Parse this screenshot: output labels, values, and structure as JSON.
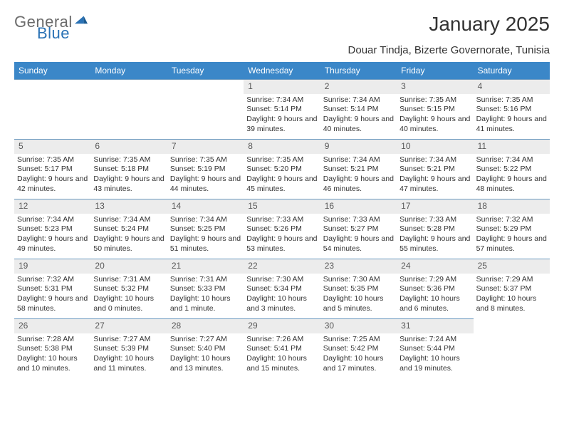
{
  "brand": {
    "part1": "General",
    "part2": "Blue"
  },
  "title": "January 2025",
  "location": "Douar Tindja, Bizerte Governorate, Tunisia",
  "weekdays": [
    "Sunday",
    "Monday",
    "Tuesday",
    "Wednesday",
    "Thursday",
    "Friday",
    "Saturday"
  ],
  "colors": {
    "header_bg": "#3b87c8",
    "header_text": "#ffffff",
    "daynum_bg": "#ececec",
    "daynum_text": "#595959",
    "body_text": "#333333",
    "rule": "#6b99c0",
    "logo_gray": "#6b6b6b",
    "logo_blue": "#2a72b5"
  },
  "leading_blanks": 3,
  "days": [
    {
      "n": "1",
      "sunrise": "Sunrise: 7:34 AM",
      "sunset": "Sunset: 5:14 PM",
      "daylight": "Daylight: 9 hours and 39 minutes."
    },
    {
      "n": "2",
      "sunrise": "Sunrise: 7:34 AM",
      "sunset": "Sunset: 5:14 PM",
      "daylight": "Daylight: 9 hours and 40 minutes."
    },
    {
      "n": "3",
      "sunrise": "Sunrise: 7:35 AM",
      "sunset": "Sunset: 5:15 PM",
      "daylight": "Daylight: 9 hours and 40 minutes."
    },
    {
      "n": "4",
      "sunrise": "Sunrise: 7:35 AM",
      "sunset": "Sunset: 5:16 PM",
      "daylight": "Daylight: 9 hours and 41 minutes."
    },
    {
      "n": "5",
      "sunrise": "Sunrise: 7:35 AM",
      "sunset": "Sunset: 5:17 PM",
      "daylight": "Daylight: 9 hours and 42 minutes."
    },
    {
      "n": "6",
      "sunrise": "Sunrise: 7:35 AM",
      "sunset": "Sunset: 5:18 PM",
      "daylight": "Daylight: 9 hours and 43 minutes."
    },
    {
      "n": "7",
      "sunrise": "Sunrise: 7:35 AM",
      "sunset": "Sunset: 5:19 PM",
      "daylight": "Daylight: 9 hours and 44 minutes."
    },
    {
      "n": "8",
      "sunrise": "Sunrise: 7:35 AM",
      "sunset": "Sunset: 5:20 PM",
      "daylight": "Daylight: 9 hours and 45 minutes."
    },
    {
      "n": "9",
      "sunrise": "Sunrise: 7:34 AM",
      "sunset": "Sunset: 5:21 PM",
      "daylight": "Daylight: 9 hours and 46 minutes."
    },
    {
      "n": "10",
      "sunrise": "Sunrise: 7:34 AM",
      "sunset": "Sunset: 5:21 PM",
      "daylight": "Daylight: 9 hours and 47 minutes."
    },
    {
      "n": "11",
      "sunrise": "Sunrise: 7:34 AM",
      "sunset": "Sunset: 5:22 PM",
      "daylight": "Daylight: 9 hours and 48 minutes."
    },
    {
      "n": "12",
      "sunrise": "Sunrise: 7:34 AM",
      "sunset": "Sunset: 5:23 PM",
      "daylight": "Daylight: 9 hours and 49 minutes."
    },
    {
      "n": "13",
      "sunrise": "Sunrise: 7:34 AM",
      "sunset": "Sunset: 5:24 PM",
      "daylight": "Daylight: 9 hours and 50 minutes."
    },
    {
      "n": "14",
      "sunrise": "Sunrise: 7:34 AM",
      "sunset": "Sunset: 5:25 PM",
      "daylight": "Daylight: 9 hours and 51 minutes."
    },
    {
      "n": "15",
      "sunrise": "Sunrise: 7:33 AM",
      "sunset": "Sunset: 5:26 PM",
      "daylight": "Daylight: 9 hours and 53 minutes."
    },
    {
      "n": "16",
      "sunrise": "Sunrise: 7:33 AM",
      "sunset": "Sunset: 5:27 PM",
      "daylight": "Daylight: 9 hours and 54 minutes."
    },
    {
      "n": "17",
      "sunrise": "Sunrise: 7:33 AM",
      "sunset": "Sunset: 5:28 PM",
      "daylight": "Daylight: 9 hours and 55 minutes."
    },
    {
      "n": "18",
      "sunrise": "Sunrise: 7:32 AM",
      "sunset": "Sunset: 5:29 PM",
      "daylight": "Daylight: 9 hours and 57 minutes."
    },
    {
      "n": "19",
      "sunrise": "Sunrise: 7:32 AM",
      "sunset": "Sunset: 5:31 PM",
      "daylight": "Daylight: 9 hours and 58 minutes."
    },
    {
      "n": "20",
      "sunrise": "Sunrise: 7:31 AM",
      "sunset": "Sunset: 5:32 PM",
      "daylight": "Daylight: 10 hours and 0 minutes."
    },
    {
      "n": "21",
      "sunrise": "Sunrise: 7:31 AM",
      "sunset": "Sunset: 5:33 PM",
      "daylight": "Daylight: 10 hours and 1 minute."
    },
    {
      "n": "22",
      "sunrise": "Sunrise: 7:30 AM",
      "sunset": "Sunset: 5:34 PM",
      "daylight": "Daylight: 10 hours and 3 minutes."
    },
    {
      "n": "23",
      "sunrise": "Sunrise: 7:30 AM",
      "sunset": "Sunset: 5:35 PM",
      "daylight": "Daylight: 10 hours and 5 minutes."
    },
    {
      "n": "24",
      "sunrise": "Sunrise: 7:29 AM",
      "sunset": "Sunset: 5:36 PM",
      "daylight": "Daylight: 10 hours and 6 minutes."
    },
    {
      "n": "25",
      "sunrise": "Sunrise: 7:29 AM",
      "sunset": "Sunset: 5:37 PM",
      "daylight": "Daylight: 10 hours and 8 minutes."
    },
    {
      "n": "26",
      "sunrise": "Sunrise: 7:28 AM",
      "sunset": "Sunset: 5:38 PM",
      "daylight": "Daylight: 10 hours and 10 minutes."
    },
    {
      "n": "27",
      "sunrise": "Sunrise: 7:27 AM",
      "sunset": "Sunset: 5:39 PM",
      "daylight": "Daylight: 10 hours and 11 minutes."
    },
    {
      "n": "28",
      "sunrise": "Sunrise: 7:27 AM",
      "sunset": "Sunset: 5:40 PM",
      "daylight": "Daylight: 10 hours and 13 minutes."
    },
    {
      "n": "29",
      "sunrise": "Sunrise: 7:26 AM",
      "sunset": "Sunset: 5:41 PM",
      "daylight": "Daylight: 10 hours and 15 minutes."
    },
    {
      "n": "30",
      "sunrise": "Sunrise: 7:25 AM",
      "sunset": "Sunset: 5:42 PM",
      "daylight": "Daylight: 10 hours and 17 minutes."
    },
    {
      "n": "31",
      "sunrise": "Sunrise: 7:24 AM",
      "sunset": "Sunset: 5:44 PM",
      "daylight": "Daylight: 10 hours and 19 minutes."
    }
  ]
}
